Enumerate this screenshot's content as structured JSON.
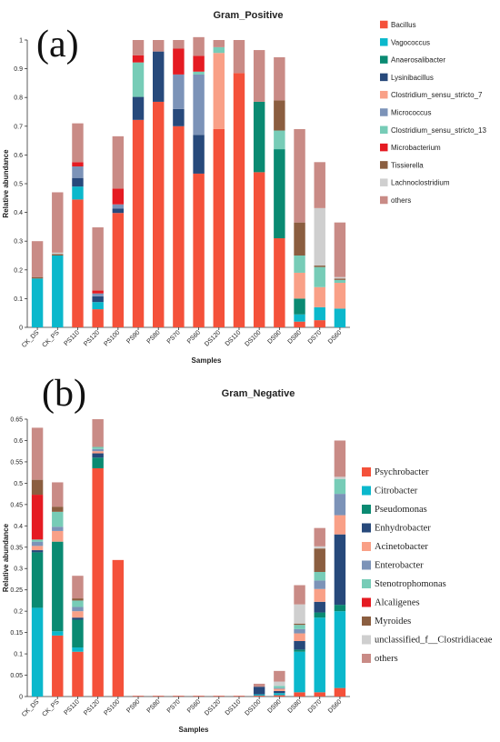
{
  "chart_data": [
    {
      "type": "bar",
      "stacked": true,
      "panel_label": "(a)",
      "title": "Gram_Positive",
      "xlabel": "Samples",
      "ylabel": "Relative abundance",
      "ylim": [
        0,
        1
      ],
      "yticks": [
        "0",
        "0.1",
        "0.2",
        "0.3",
        "0.4",
        "0.5",
        "0.6",
        "0.7",
        "0.8",
        "0.9",
        "1"
      ],
      "legend_position": "right",
      "categories": [
        "CK_DS",
        "CK_PS",
        "PS110",
        "PS120",
        "PS100",
        "PS90",
        "PS80",
        "PS70",
        "PS60",
        "DS120",
        "DS110",
        "DS100",
        "DS90",
        "DS80",
        "DS70",
        "DS60"
      ],
      "series": [
        {
          "name": "Bacillus",
          "color": "#f4513a",
          "values": [
            0,
            0,
            0.445,
            0.063,
            0.398,
            0.722,
            0.785,
            0.7,
            0.535,
            0.69,
            0.885,
            0.54,
            0.31,
            0.02,
            0.025,
            0
          ]
        },
        {
          "name": "Vagococcus",
          "color": "#0bb8cc",
          "values": [
            0.17,
            0.25,
            0.045,
            0.025,
            0,
            0,
            0,
            0,
            0,
            0,
            0,
            0,
            0,
            0.025,
            0.045,
            0.065
          ]
        },
        {
          "name": "Anaerosalibacter",
          "color": "#0a8a72",
          "values": [
            0,
            0,
            0,
            0,
            0,
            0,
            0,
            0,
            0,
            0,
            0,
            0.245,
            0.31,
            0.055,
            0,
            0
          ]
        },
        {
          "name": "Lysinibacillus",
          "color": "#27497b",
          "values": [
            0,
            0,
            0.03,
            0.02,
            0.015,
            0.08,
            0.175,
            0.06,
            0.135,
            0,
            0,
            0,
            0,
            0,
            0,
            0
          ]
        },
        {
          "name": "Clostridium_sensu_stricto_7",
          "color": "#f9a087",
          "values": [
            0,
            0,
            0,
            0,
            0,
            0,
            0,
            0,
            0,
            0.265,
            0,
            0,
            0,
            0.09,
            0.07,
            0.09
          ]
        },
        {
          "name": "Micrococcus",
          "color": "#7c93b8",
          "values": [
            0,
            0,
            0.04,
            0.01,
            0.015,
            0,
            0,
            0.12,
            0.21,
            0,
            0,
            0,
            0,
            0,
            0,
            0
          ]
        },
        {
          "name": "Clostridium_sensu_stricto_13",
          "color": "#77ccb7",
          "values": [
            0,
            0,
            0,
            0,
            0,
            0.12,
            0,
            0,
            0.01,
            0.02,
            0,
            0,
            0.065,
            0.06,
            0.07,
            0.01
          ]
        },
        {
          "name": "Microbacterium",
          "color": "#e51b22",
          "values": [
            0,
            0,
            0.015,
            0.01,
            0.055,
            0.025,
            0,
            0.09,
            0.055,
            0,
            0,
            0,
            0,
            0,
            0,
            0
          ]
        },
        {
          "name": "Tissierella",
          "color": "#8b5e40",
          "values": [
            0.005,
            0.005,
            0,
            0,
            0,
            0,
            0,
            0,
            0,
            0,
            0,
            0,
            0.105,
            0.115,
            0.005,
            0.005
          ]
        },
        {
          "name": "Lachnoclostridium",
          "color": "#cfcfcf",
          "values": [
            0,
            0.005,
            0,
            0,
            0,
            0,
            0,
            0,
            0,
            0,
            0,
            0,
            0,
            0,
            0.2,
            0.005
          ]
        },
        {
          "name": "others",
          "color": "#c98b86",
          "values": [
            0.125,
            0.21,
            0.135,
            0.22,
            0.182,
            0.053,
            0.04,
            0.03,
            0.065,
            0.025,
            0.115,
            0.18,
            0.15,
            0.325,
            0.16,
            0.19
          ]
        }
      ]
    },
    {
      "type": "bar",
      "stacked": true,
      "panel_label": "(b)",
      "title": "Gram_Negative",
      "xlabel": "Samples",
      "ylabel": "Relative abundance",
      "ylim": [
        0,
        0.65
      ],
      "yticks": [
        "0",
        "0.05",
        "0.1",
        "0.15",
        "0.2",
        "0.25",
        "0.3",
        "0.35",
        "0.4",
        "0.45",
        "0.5",
        "0.55",
        "0.6",
        "0.65"
      ],
      "legend_position": "right",
      "categories": [
        "CK_DS",
        "CK_PS",
        "PS110",
        "PS120",
        "PS100",
        "PS90",
        "PS80",
        "PS70",
        "PS60",
        "DS120",
        "DS110",
        "DS100",
        "DS90",
        "DS80",
        "DS70",
        "DS60"
      ],
      "series": [
        {
          "name": "Psychrobacter",
          "color": "#f4513a",
          "values": [
            0,
            0.143,
            0.105,
            0.535,
            0.32,
            0.001,
            0.001,
            0.001,
            0.001,
            0.001,
            0.001,
            0.002,
            0.003,
            0.01,
            0.01,
            0.02
          ]
        },
        {
          "name": "Citrobacter",
          "color": "#0bb8cc",
          "values": [
            0.208,
            0.01,
            0.01,
            0,
            0,
            0,
            0,
            0,
            0,
            0,
            0,
            0.003,
            0.005,
            0.095,
            0.175,
            0.18
          ]
        },
        {
          "name": "Pseudomonas",
          "color": "#0a8a72",
          "values": [
            0.13,
            0.21,
            0.065,
            0.025,
            0,
            0,
            0,
            0,
            0,
            0,
            0,
            0,
            0,
            0.005,
            0.012,
            0.015
          ]
        },
        {
          "name": "Enhydrobacter",
          "color": "#27497b",
          "values": [
            0.005,
            0,
            0.005,
            0.01,
            0,
            0,
            0,
            0,
            0,
            0,
            0,
            0.018,
            0.005,
            0.02,
            0.025,
            0.165
          ]
        },
        {
          "name": "Acinetobacter",
          "color": "#f9a087",
          "values": [
            0.01,
            0.025,
            0.015,
            0.005,
            0,
            0,
            0,
            0,
            0,
            0,
            0,
            0,
            0.005,
            0.018,
            0.03,
            0.045
          ]
        },
        {
          "name": "Enterobacter",
          "color": "#7c93b8",
          "values": [
            0.01,
            0.01,
            0.01,
            0.005,
            0,
            0,
            0,
            0,
            0,
            0,
            0,
            0,
            0.002,
            0.01,
            0.02,
            0.05
          ]
        },
        {
          "name": "Stenotrophomonas",
          "color": "#77ccb7",
          "values": [
            0.005,
            0.035,
            0.015,
            0.005,
            0,
            0,
            0,
            0,
            0,
            0,
            0,
            0,
            0.005,
            0.01,
            0.02,
            0.035
          ]
        },
        {
          "name": "Alcaligenes",
          "color": "#e51b22",
          "values": [
            0.105,
            0,
            0,
            0,
            0,
            0,
            0,
            0,
            0,
            0,
            0,
            0,
            0,
            0,
            0,
            0
          ]
        },
        {
          "name": "Myroides",
          "color": "#8b5e40",
          "values": [
            0.035,
            0.012,
            0.005,
            0,
            0,
            0,
            0,
            0,
            0,
            0,
            0,
            0,
            0,
            0.003,
            0.055,
            0
          ]
        },
        {
          "name": "unclassified_f__Clostridiaceae",
          "color": "#cfcfcf",
          "values": [
            0,
            0,
            0,
            0,
            0,
            0,
            0,
            0,
            0,
            0,
            0,
            0,
            0.01,
            0.045,
            0.005,
            0.005
          ]
        },
        {
          "name": "others",
          "color": "#c98b86",
          "values": [
            0.122,
            0.057,
            0.053,
            0.065,
            0,
            0.001,
            0.001,
            0.001,
            0.001,
            0.001,
            0.001,
            0.007,
            0.025,
            0.045,
            0.043,
            0.085
          ]
        }
      ]
    }
  ]
}
